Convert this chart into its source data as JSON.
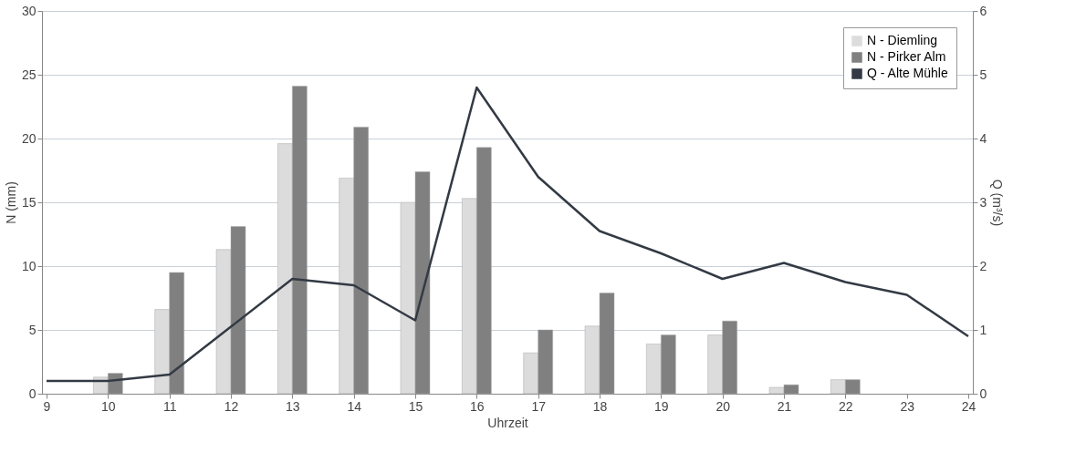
{
  "chart_data": {
    "type": "bar",
    "xlabel": "Uhrzeit",
    "ylabel": "N (mm)",
    "y2label": "Q (m³/s)",
    "xlim": [
      9,
      24
    ],
    "xticks": [
      9,
      10,
      11,
      12,
      13,
      14,
      15,
      16,
      17,
      18,
      19,
      20,
      21,
      22,
      23,
      24
    ],
    "ylim": [
      0,
      30
    ],
    "yticks": [
      0,
      5,
      10,
      15,
      20,
      25,
      30
    ],
    "y2lim": [
      0,
      6
    ],
    "y2ticks": [
      0,
      1,
      2,
      3,
      4,
      5,
      6
    ],
    "grid": "y",
    "legend": "top right",
    "series": [
      {
        "name": "N - Diemling",
        "color": "#dcdcdc",
        "x": [
          10,
          11,
          12,
          13,
          14,
          15,
          16,
          17,
          18,
          19,
          20,
          21,
          22
        ],
        "values": [
          1.3,
          6.6,
          11.3,
          19.6,
          16.9,
          15.0,
          15.3,
          3.2,
          5.3,
          3.9,
          4.6,
          0.5,
          1.1
        ]
      },
      {
        "name": "N - Pirker Alm",
        "color": "#808080",
        "x": [
          10,
          11,
          12,
          13,
          14,
          15,
          16,
          17,
          18,
          19,
          20,
          21,
          22
        ],
        "values": [
          1.6,
          9.5,
          13.1,
          24.1,
          20.9,
          17.4,
          19.3,
          5.0,
          7.9,
          4.6,
          5.7,
          0.7,
          1.1
        ]
      },
      {
        "name": "Q - Alte Mühle",
        "type": "line",
        "axis": "y2",
        "color": "#333a44",
        "x": [
          9,
          10,
          11,
          12,
          13,
          14,
          15,
          16,
          17,
          18,
          19,
          20,
          21,
          22,
          23,
          24
        ],
        "values": [
          0.2,
          0.2,
          0.3,
          1.05,
          1.8,
          1.7,
          1.15,
          4.8,
          3.4,
          2.55,
          2.2,
          1.8,
          2.05,
          1.75,
          1.55,
          0.9
        ]
      }
    ]
  }
}
